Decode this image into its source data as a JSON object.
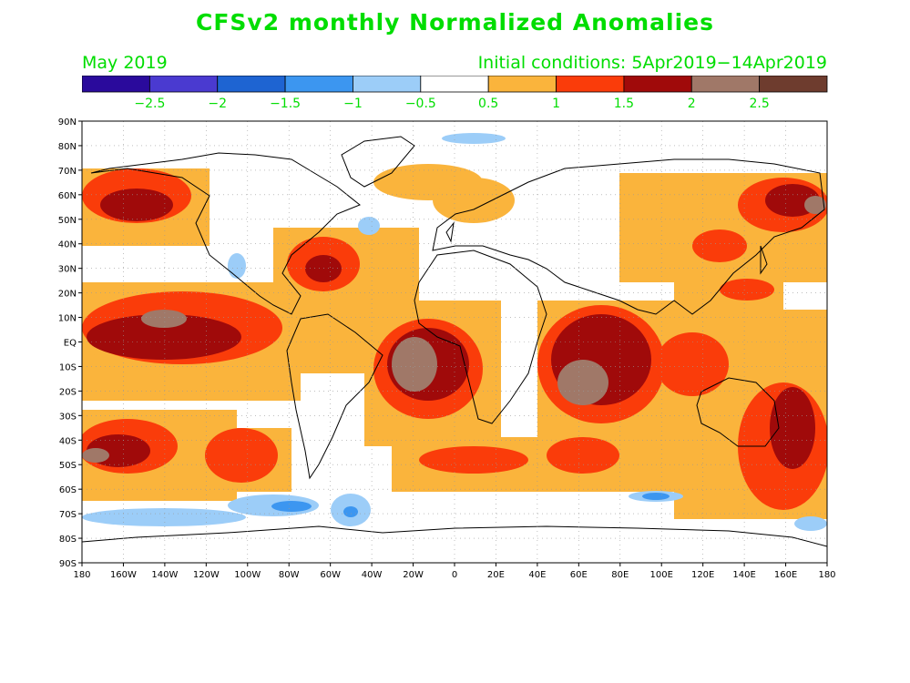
{
  "title": "CFSv2 monthly Normalized Anomalies",
  "valid_month": "May 2019",
  "initial_conditions": "Initial conditions: 5Apr2019−14Apr2019",
  "colorbar": {
    "colors": [
      "#2a0a9c",
      "#4a3ad0",
      "#1e64d2",
      "#3c96f0",
      "#9ccdf8",
      "#ffffff",
      "#fab43c",
      "#fa3c0a",
      "#a00a0a",
      "#a07868",
      "#6e3c2e"
    ],
    "labels": [
      "−2.5",
      "−2",
      "−1.5",
      "−1",
      "−0.5",
      "0.5",
      "1",
      "1.5",
      "2",
      "2.5"
    ]
  },
  "axes": {
    "lat_labels": [
      "90N",
      "80N",
      "70N",
      "60N",
      "50N",
      "40N",
      "30N",
      "20N",
      "10N",
      "EQ",
      "10S",
      "20S",
      "30S",
      "40S",
      "50S",
      "60S",
      "70S",
      "80S",
      "90S"
    ],
    "lon_labels": [
      "180",
      "160W",
      "140W",
      "120W",
      "100W",
      "80W",
      "60W",
      "40W",
      "20W",
      "0",
      "20E",
      "40E",
      "60E",
      "80E",
      "100E",
      "120E",
      "140E",
      "160E",
      "180"
    ]
  },
  "chart_data": {
    "type": "heatmap",
    "title": "CFSv2 monthly Normalized Anomalies",
    "subtitle": "May 2019",
    "xlim": [
      -180,
      180
    ],
    "ylim": [
      -90,
      90
    ],
    "grid": true
  }
}
